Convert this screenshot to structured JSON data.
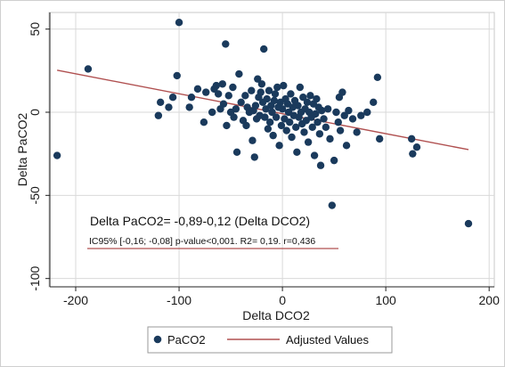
{
  "chart_data": {
    "type": "scatter",
    "xlabel": "Delta DCO2",
    "ylabel": "Delta PaCO2",
    "xlim": [
      -225,
      205
    ],
    "ylim": [
      -105,
      60
    ],
    "xticks": [
      "-200",
      "-100",
      "0",
      "100",
      "200"
    ],
    "xtick_values": [
      -200,
      -100,
      0,
      100,
      200
    ],
    "yticks": [
      "50",
      "0",
      "-50",
      "-100"
    ],
    "ytick_values": [
      50,
      0,
      -50,
      -100
    ],
    "grid": true,
    "legend_position": "bottom",
    "annotations": [
      "Delta PaCO2= -0,89-0,12 (Delta DCO2)",
      "IC95% [-0,16; -0,08] p-value<0,001. R2= 0,19. r=0,436"
    ],
    "series": [
      {
        "name": "PaCO2",
        "kind": "scatter",
        "color": "#1a3a5c",
        "points": [
          [
            -218,
            -26
          ],
          [
            -188,
            26
          ],
          [
            -120,
            -2
          ],
          [
            -118,
            6
          ],
          [
            -110,
            3
          ],
          [
            -106,
            9
          ],
          [
            -102,
            22
          ],
          [
            -100,
            54
          ],
          [
            -90,
            3
          ],
          [
            -88,
            9
          ],
          [
            -82,
            14
          ],
          [
            -76,
            -6
          ],
          [
            -74,
            12
          ],
          [
            -68,
            0
          ],
          [
            -66,
            14
          ],
          [
            -64,
            16
          ],
          [
            -62,
            11
          ],
          [
            -60,
            2
          ],
          [
            -58,
            17
          ],
          [
            -57,
            5
          ],
          [
            -55,
            41
          ],
          [
            -54,
            -8
          ],
          [
            -52,
            10
          ],
          [
            -50,
            0
          ],
          [
            -48,
            15
          ],
          [
            -47,
            -3
          ],
          [
            -45,
            2
          ],
          [
            -44,
            -24
          ],
          [
            -42,
            23
          ],
          [
            -40,
            6
          ],
          [
            -38,
            -5
          ],
          [
            -36,
            10
          ],
          [
            -35,
            -8
          ],
          [
            -34,
            3
          ],
          [
            -32,
            0
          ],
          [
            -30,
            13
          ],
          [
            -29,
            -17
          ],
          [
            -28,
            1
          ],
          [
            -27,
            -27
          ],
          [
            -26,
            4
          ],
          [
            -25,
            -4
          ],
          [
            -24,
            20
          ],
          [
            -23,
            9
          ],
          [
            -22,
            -2
          ],
          [
            -21,
            12
          ],
          [
            -20,
            17
          ],
          [
            -19,
            6
          ],
          [
            -18,
            38
          ],
          [
            -17,
            -3
          ],
          [
            -16,
            2
          ],
          [
            -15,
            8
          ],
          [
            -14,
            -10
          ],
          [
            -13,
            13
          ],
          [
            -12,
            -6
          ],
          [
            -11,
            4
          ],
          [
            -10,
            0
          ],
          [
            -9,
            -14
          ],
          [
            -8,
            7
          ],
          [
            -7,
            11
          ],
          [
            -6,
            -3
          ],
          [
            -5,
            15
          ],
          [
            -4,
            3
          ],
          [
            -3,
            -20
          ],
          [
            -2,
            6
          ],
          [
            -1,
            -8
          ],
          [
            0,
            2
          ],
          [
            1,
            16
          ],
          [
            2,
            -4
          ],
          [
            3,
            8
          ],
          [
            4,
            -11
          ],
          [
            5,
            5
          ],
          [
            6,
            0
          ],
          [
            7,
            -6
          ],
          [
            8,
            11
          ],
          [
            9,
            -15
          ],
          [
            10,
            3
          ],
          [
            11,
            -2
          ],
          [
            12,
            7
          ],
          [
            13,
            -9
          ],
          [
            14,
            -24
          ],
          [
            15,
            4
          ],
          [
            16,
            -3
          ],
          [
            17,
            15
          ],
          [
            18,
            0
          ],
          [
            19,
            -7
          ],
          [
            20,
            9
          ],
          [
            21,
            -12
          ],
          [
            22,
            2
          ],
          [
            23,
            -5
          ],
          [
            24,
            6
          ],
          [
            25,
            -18
          ],
          [
            26,
            0
          ],
          [
            27,
            10
          ],
          [
            28,
            -3
          ],
          [
            29,
            -9
          ],
          [
            30,
            5
          ],
          [
            31,
            -26
          ],
          [
            32,
            -1
          ],
          [
            33,
            8
          ],
          [
            34,
            -6
          ],
          [
            35,
            3
          ],
          [
            36,
            -13
          ],
          [
            37,
            -32
          ],
          [
            38,
            1
          ],
          [
            40,
            -4
          ],
          [
            42,
            -9
          ],
          [
            44,
            2
          ],
          [
            46,
            -16
          ],
          [
            48,
            -56
          ],
          [
            50,
            -29
          ],
          [
            52,
            0
          ],
          [
            54,
            -6
          ],
          [
            55,
            9
          ],
          [
            56,
            -11
          ],
          [
            58,
            12
          ],
          [
            60,
            -2
          ],
          [
            62,
            -20
          ],
          [
            64,
            1
          ],
          [
            68,
            -4
          ],
          [
            72,
            -12
          ],
          [
            76,
            -2
          ],
          [
            82,
            0
          ],
          [
            88,
            6
          ],
          [
            92,
            21
          ],
          [
            94,
            -16
          ],
          [
            125,
            -16
          ],
          [
            126,
            -25
          ],
          [
            130,
            -21
          ],
          [
            180,
            -67
          ]
        ]
      },
      {
        "name": "Adjusted Values",
        "kind": "line",
        "color": "#b05050",
        "x": [
          -218,
          180
        ],
        "y": [
          25.27,
          -22.49
        ]
      }
    ]
  },
  "legend": {
    "points_label": "PaCO2",
    "line_label": "Adjusted Values"
  }
}
